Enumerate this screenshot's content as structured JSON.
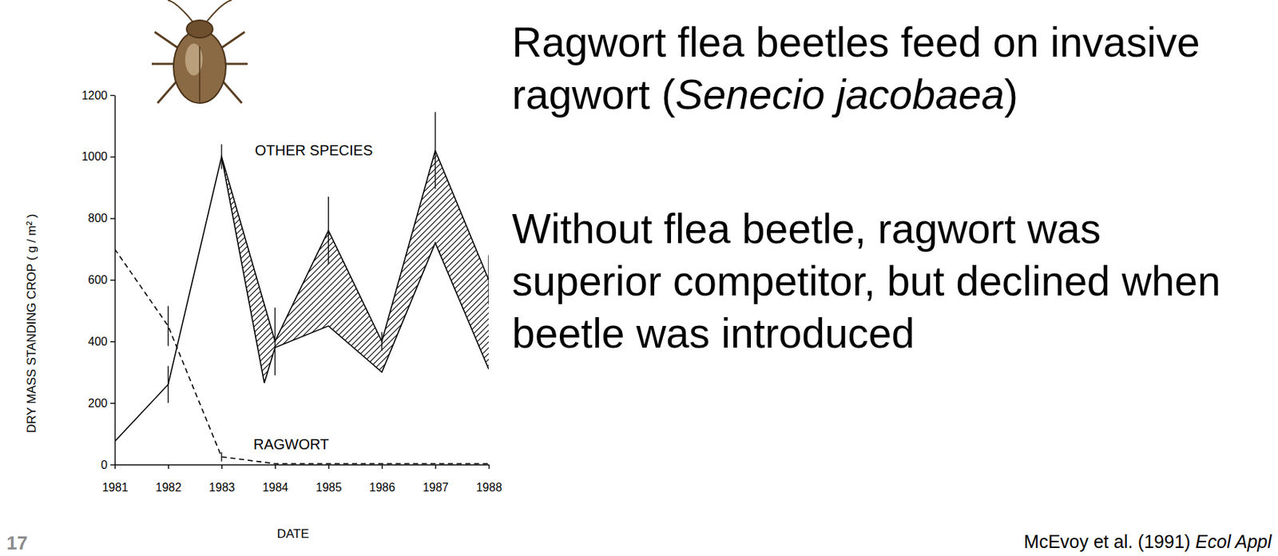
{
  "chart_data": {
    "type": "line",
    "x_label": "DATE",
    "y_label": "DRY MASS STANDING CROP  ( g / m² )",
    "xlim": [
      1981,
      1988
    ],
    "xticks": [
      1981,
      1982,
      1983,
      1984,
      1985,
      1986,
      1987,
      1988
    ],
    "ylim": [
      0,
      1200
    ],
    "yticks": [
      0,
      200,
      400,
      600,
      800,
      1000,
      1200
    ],
    "grid": false,
    "series": [
      {
        "name": "OTHER SPECIES",
        "color": "#000000",
        "line_style": "solid",
        "x": [
          1981,
          1982,
          1983,
          1984,
          1985,
          1986,
          1987,
          1988
        ],
        "values": [
          75,
          260,
          1000,
          400,
          760,
          400,
          1020,
          600
        ],
        "errors": [
          50,
          60,
          40,
          110,
          110,
          30,
          125,
          80
        ]
      },
      {
        "color": "#000000",
        "line_style": "solid",
        "x": [
          1983,
          1983.8,
          1984,
          1985,
          1986,
          1987,
          1988
        ],
        "values": [
          1000,
          265,
          380,
          450,
          300,
          720,
          310
        ]
      },
      {
        "name": "RAGWORT",
        "color": "#000000",
        "line_style": "dashed",
        "x": [
          1981,
          1982,
          1983,
          1984,
          1985,
          1986,
          1987,
          1988
        ],
        "values": [
          700,
          450,
          25,
          3,
          3,
          3,
          3,
          3
        ],
        "errors": [
          115,
          65,
          15,
          0,
          0,
          0,
          0,
          0
        ]
      }
    ]
  },
  "slide": {
    "paragraphs": [
      [
        [
          {
            "text": "Ragwort flea beetles feed on invasive"
          }
        ],
        [
          {
            "text": "ragwort ("
          },
          {
            "text": "Senecio jacobaea",
            "italic": true
          },
          {
            "text": ")"
          }
        ]
      ],
      [
        [
          {
            "text": "Without flea beetle, ragwort was"
          }
        ],
        [
          {
            "text": "superior competitor, but declined when"
          }
        ],
        [
          {
            "text": "beetle was introduced"
          }
        ]
      ]
    ],
    "number": "17",
    "citation": [
      {
        "text": "McEvoy et al. (1991) "
      },
      {
        "text": "Ecol Appl",
        "italic": true
      }
    ]
  }
}
